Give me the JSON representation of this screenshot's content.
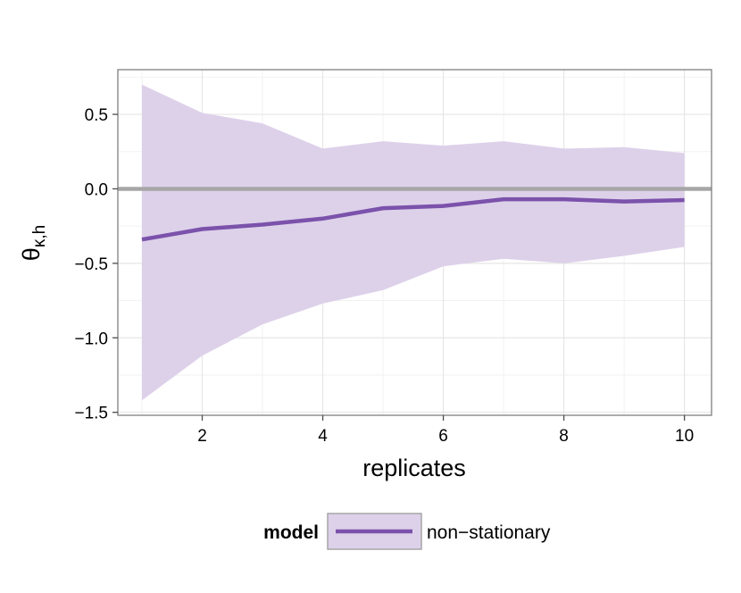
{
  "chart_data": {
    "type": "line",
    "xlabel": "replicates",
    "ylabel": "θ",
    "ylabel_subscript": "κ,h",
    "xlim": [
      0.6,
      10.45
    ],
    "ylim": [
      -1.52,
      0.8
    ],
    "x_ticks": [
      2,
      4,
      6,
      8,
      10
    ],
    "x_tick_labels": [
      "2",
      "4",
      "6",
      "8",
      "10"
    ],
    "y_ticks": [
      0.5,
      0.0,
      -0.5,
      -1.0,
      -1.5
    ],
    "y_tick_labels": [
      "0.5",
      "0.0",
      "−0.5",
      "−1.0",
      "−1.5"
    ],
    "reference_line": {
      "y": 0.0,
      "color": "#a6a6a6"
    },
    "grid": true,
    "legend": {
      "position": "bottom",
      "title": "model",
      "entries": [
        "non−stationary"
      ]
    },
    "series": [
      {
        "name": "non−stationary",
        "color": "#7b52ab",
        "ribbon_color": "#ddd1ea",
        "x": [
          1,
          2,
          3,
          4,
          5,
          6,
          7,
          8,
          9,
          10
        ],
        "values": [
          -0.34,
          -0.27,
          -0.24,
          -0.2,
          -0.13,
          -0.115,
          -0.07,
          -0.07,
          -0.085,
          -0.075
        ],
        "lower": [
          -1.42,
          -1.12,
          -0.91,
          -0.77,
          -0.68,
          -0.52,
          -0.47,
          -0.5,
          -0.45,
          -0.39
        ],
        "upper": [
          0.7,
          0.51,
          0.44,
          0.27,
          0.32,
          0.29,
          0.32,
          0.27,
          0.28,
          0.24
        ]
      }
    ]
  }
}
